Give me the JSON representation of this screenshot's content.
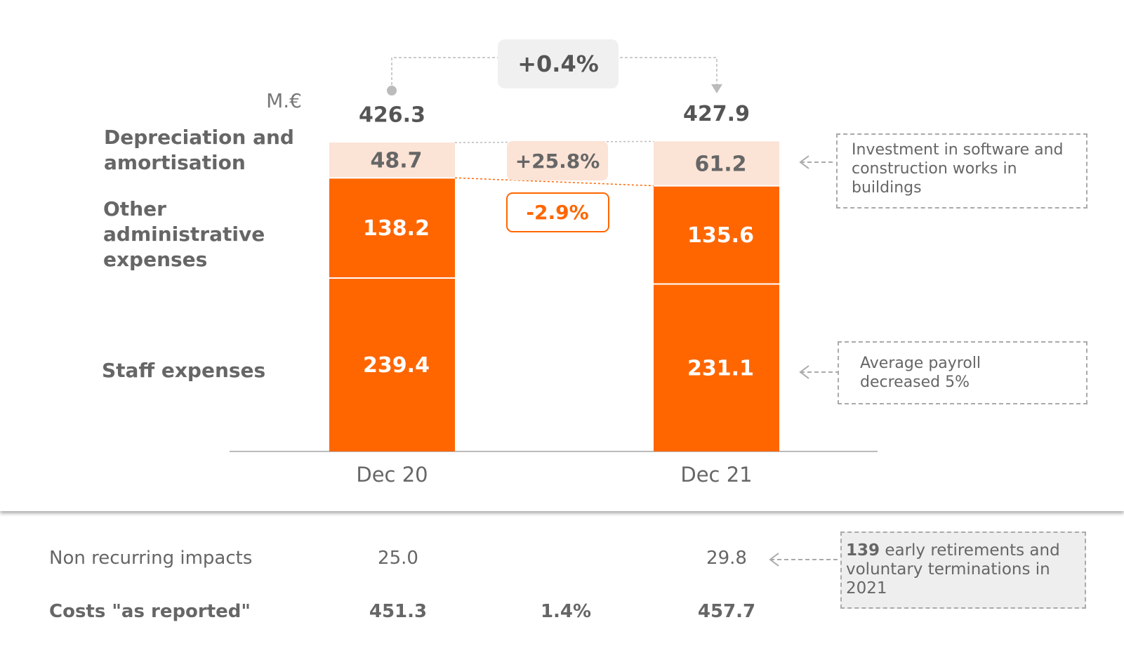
{
  "chart_data": {
    "type": "stacked_bar",
    "unit": "M.€",
    "categories": [
      "Dec 20",
      "Dec 21"
    ],
    "series": [
      {
        "name": "Staff expenses",
        "color": "#ff6600",
        "values": [
          239.4,
          231.1
        ]
      },
      {
        "name": "Other administrative expenses",
        "color": "#ff6600",
        "values": [
          138.2,
          135.6
        ]
      },
      {
        "name": "Depreciation and amortisation",
        "color": "#fbe3d6",
        "values": [
          48.7,
          61.2
        ]
      }
    ],
    "totals": [
      426.3,
      427.9
    ],
    "total_change": "+0.4%",
    "changes": {
      "other": "-2.9%",
      "depreciation": "+25.8%"
    },
    "notes": [
      "Investment in software and construction works in buildings",
      "Average payroll decreased 5%"
    ]
  },
  "table": {
    "rows": [
      {
        "label": "Non recurring impacts",
        "dec20": "25.0",
        "dec21": "29.8"
      },
      {
        "label": "Costs \"as reported\"",
        "dec20": "451.3",
        "change": "1.4%",
        "dec21": "457.7"
      }
    ]
  },
  "table_note": {
    "bold": "139",
    "text": "early retirements and voluntary terminations in 2021"
  }
}
